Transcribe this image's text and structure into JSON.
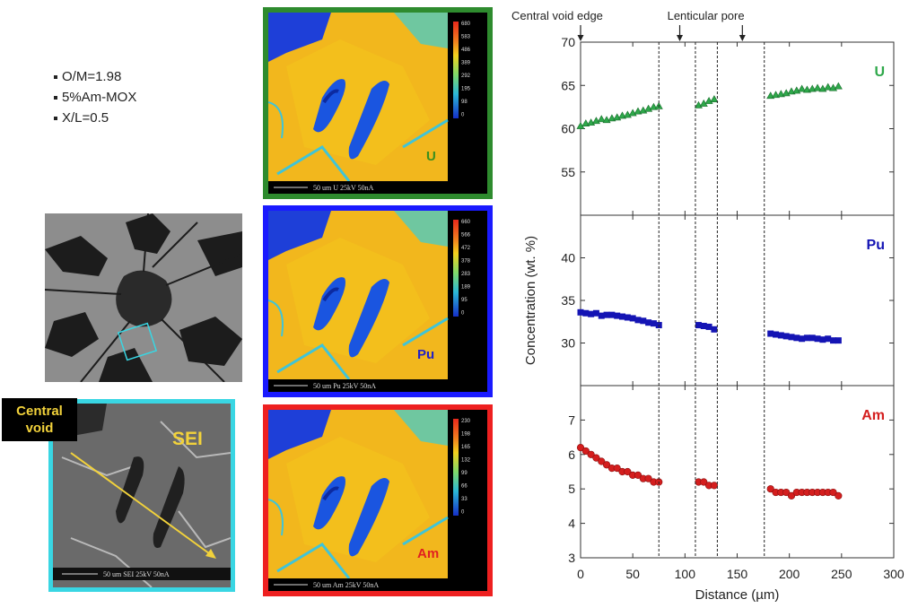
{
  "bullets": [
    "O/M=1.98",
    "5%Am-MOX",
    "X/L=0.5"
  ],
  "sei": {
    "central_void_label_line1": "Central",
    "central_void_label_line2": "void",
    "sei_label": "SEI",
    "scale_text": "50 um SEI  25kV 50nA",
    "frame_color": "#39d6e3",
    "arrow_color": "#f2d23b"
  },
  "maps": [
    {
      "element": "U",
      "frame_color": "#2e8b2e",
      "label_color": "#3a8f1e",
      "scale_text": "50 um U   25kV 50nA",
      "colorbar_ticks": [
        "680",
        "583",
        "486",
        "389",
        "292",
        "195",
        "98",
        "0"
      ]
    },
    {
      "element": "Pu",
      "frame_color": "#1a1aff",
      "label_color": "#2020c8",
      "scale_text": "50 um Pu  25kV 50nA",
      "colorbar_ticks": [
        "660",
        "566",
        "472",
        "378",
        "283",
        "189",
        "95",
        "0"
      ]
    },
    {
      "element": "Am",
      "frame_color": "#ee2020",
      "label_color": "#e02020",
      "scale_text": "50 um Am  25kV 50nA",
      "colorbar_ticks": [
        "230",
        "198",
        "165",
        "132",
        "99",
        "66",
        "33",
        "0"
      ]
    }
  ],
  "chart_data": {
    "type": "scatter",
    "xlabel": "Distance (µm)",
    "ylabel": "Concentration (wt. %)",
    "xlim": [
      0,
      300
    ],
    "xticks": [
      "0",
      "50",
      "100",
      "150",
      "200",
      "250",
      "300"
    ],
    "annotations": [
      {
        "text": "Central void edge",
        "x": 0
      },
      {
        "text": "Lenticular pore",
        "x": 95
      },
      {
        "text": "",
        "x": 155
      }
    ],
    "vlines": [
      75,
      110,
      131,
      176
    ],
    "panels": [
      {
        "name": "U",
        "color": "#2ea84a",
        "marker": "triangle",
        "ylim": [
          50,
          70
        ],
        "yticks": [
          "55",
          "60",
          "65",
          "70"
        ],
        "x": [
          0,
          5,
          10,
          15,
          20,
          25,
          30,
          35,
          40,
          45,
          50,
          55,
          60,
          65,
          70,
          75,
          113,
          118,
          123,
          128,
          182,
          187,
          192,
          197,
          202,
          207,
          212,
          217,
          222,
          227,
          232,
          237,
          242,
          247
        ],
        "y": [
          60.3,
          60.6,
          60.7,
          60.9,
          61.1,
          61.0,
          61.2,
          61.3,
          61.5,
          61.6,
          61.8,
          62.0,
          62.1,
          62.3,
          62.5,
          62.6,
          62.7,
          62.9,
          63.2,
          63.4,
          63.8,
          63.9,
          64.0,
          64.1,
          64.3,
          64.4,
          64.6,
          64.5,
          64.6,
          64.7,
          64.6,
          64.8,
          64.7,
          64.9
        ]
      },
      {
        "name": "Pu",
        "color": "#1414b4",
        "marker": "square",
        "ylim": [
          25,
          45
        ],
        "yticks": [
          "30",
          "35",
          "40"
        ],
        "x": [
          0,
          5,
          10,
          15,
          20,
          25,
          30,
          35,
          40,
          45,
          50,
          55,
          60,
          65,
          70,
          75,
          113,
          118,
          123,
          128,
          182,
          187,
          192,
          197,
          202,
          207,
          212,
          217,
          222,
          227,
          232,
          237,
          242,
          247
        ],
        "y": [
          33.6,
          33.5,
          33.4,
          33.5,
          33.2,
          33.3,
          33.3,
          33.2,
          33.1,
          33.0,
          32.9,
          32.7,
          32.6,
          32.4,
          32.3,
          32.1,
          32.1,
          32.0,
          31.9,
          31.6,
          31.1,
          31.0,
          30.9,
          30.8,
          30.7,
          30.6,
          30.5,
          30.6,
          30.6,
          30.5,
          30.4,
          30.5,
          30.3,
          30.3
        ]
      },
      {
        "name": "Am",
        "color": "#d41e1e",
        "marker": "circle",
        "ylim": [
          3,
          8
        ],
        "yticks": [
          "3",
          "4",
          "5",
          "6",
          "7"
        ],
        "x": [
          0,
          5,
          10,
          15,
          20,
          25,
          30,
          35,
          40,
          45,
          50,
          55,
          60,
          65,
          70,
          75,
          113,
          118,
          123,
          128,
          182,
          187,
          192,
          197,
          202,
          207,
          212,
          217,
          222,
          227,
          232,
          237,
          242,
          247
        ],
        "y": [
          6.2,
          6.1,
          6.0,
          5.9,
          5.8,
          5.7,
          5.6,
          5.6,
          5.5,
          5.5,
          5.4,
          5.4,
          5.3,
          5.3,
          5.2,
          5.2,
          5.2,
          5.2,
          5.1,
          5.1,
          5.0,
          4.9,
          4.9,
          4.9,
          4.8,
          4.9,
          4.9,
          4.9,
          4.9,
          4.9,
          4.9,
          4.9,
          4.9,
          4.8
        ]
      }
    ]
  }
}
